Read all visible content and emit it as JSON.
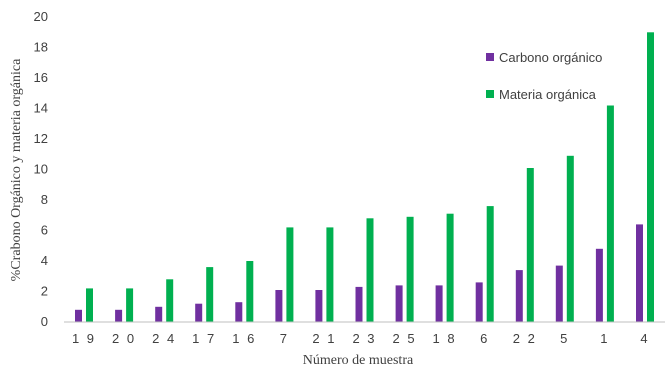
{
  "chart_data": {
    "type": "bar",
    "categories": [
      "19",
      "20",
      "24",
      "17",
      "16",
      "7",
      "21",
      "23",
      "25",
      "18",
      "6",
      "22",
      "5",
      "1",
      "4"
    ],
    "category_labels": [
      "1 9",
      "2 0",
      "2 4",
      "1 7",
      "1 6",
      "7",
      "2 1",
      "2 3",
      "2 5",
      "1 8",
      "6",
      "2 2",
      "5",
      "1",
      "4"
    ],
    "series": [
      {
        "name": "Carbono orgánico",
        "color": "#7030A0",
        "values": [
          0.8,
          0.8,
          1.0,
          1.2,
          1.3,
          2.1,
          2.1,
          2.3,
          2.4,
          2.4,
          2.6,
          3.4,
          3.7,
          4.8,
          6.4
        ]
      },
      {
        "name": "Materia orgánica",
        "color": "#00B050",
        "values": [
          2.2,
          2.2,
          2.8,
          3.6,
          4.0,
          6.2,
          6.2,
          6.8,
          6.9,
          7.1,
          7.6,
          10.1,
          10.9,
          14.2,
          19.0
        ]
      }
    ],
    "title": "",
    "xlabel": "Número de muestra",
    "ylabel": "%Crabono Orgánico  y materia orgánica",
    "ylim": [
      0,
      20
    ],
    "yticks": [
      0,
      2,
      4,
      6,
      8,
      10,
      12,
      14,
      16,
      18,
      20
    ],
    "grid": false,
    "legend_position": "top-right"
  }
}
